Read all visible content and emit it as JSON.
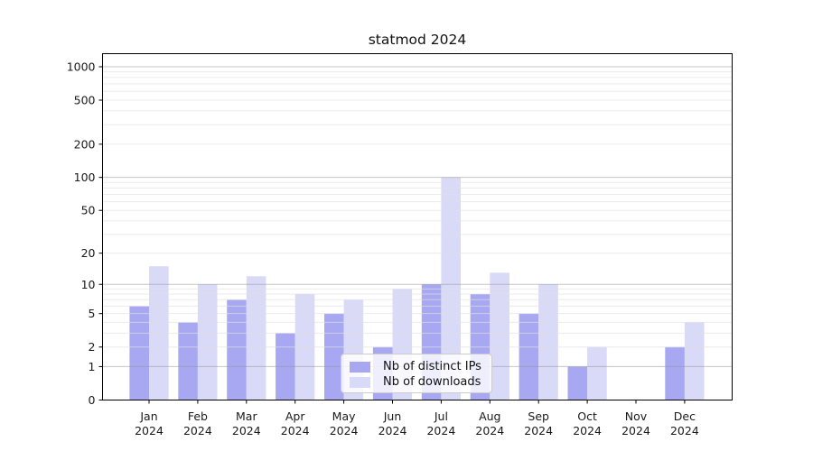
{
  "title": "statmod 2024",
  "colors": {
    "ips": "#a8a8f2",
    "downloads": "#d9d9f8",
    "axis": "#000000",
    "tick_text": "#1a1a1a",
    "grid_major": "rgba(150,150,150,0.55)",
    "grid_minor": "rgba(225,225,225,0.65)",
    "legend_border": "#cccccc"
  },
  "legend": {
    "items": [
      {
        "label": "Nb of distinct IPs",
        "key": "ips"
      },
      {
        "label": "Nb of downloads",
        "key": "downloads"
      }
    ]
  },
  "chart_data": {
    "type": "bar",
    "title": "statmod 2024",
    "y_scale": "log10(1+y)",
    "categories_line1": [
      "Jan",
      "Feb",
      "Mar",
      "Apr",
      "May",
      "Jun",
      "Jul",
      "Aug",
      "Sep",
      "Oct",
      "Nov",
      "Dec"
    ],
    "categories_line2": "2024",
    "series": [
      {
        "name": "Nb of distinct IPs",
        "key": "ips",
        "values": [
          6,
          4,
          7,
          3,
          5,
          2,
          10,
          8,
          5,
          1,
          0,
          2
        ]
      },
      {
        "name": "Nb of downloads",
        "key": "downloads",
        "values": [
          15,
          10,
          12,
          8,
          7,
          9,
          100,
          13,
          10,
          2,
          0,
          4
        ]
      }
    ],
    "y_tick_labels": [
      "1000",
      "500",
      "200",
      "100",
      "50",
      "20",
      "10",
      "5",
      "2",
      "1",
      "0"
    ],
    "y_tick_values": [
      1000,
      500,
      200,
      100,
      50,
      20,
      10,
      5,
      2,
      1,
      0
    ],
    "y_major_gridlines": [
      1,
      10,
      100,
      1000
    ],
    "y_minor_gridlines": [
      2,
      3,
      4,
      5,
      6,
      7,
      8,
      9,
      20,
      30,
      40,
      50,
      60,
      70,
      80,
      90,
      200,
      300,
      400,
      500,
      600,
      700,
      800,
      900
    ],
    "ylim": [
      0,
      1300
    ],
    "grid": "on",
    "legend_position": "inside-bottom-center"
  }
}
